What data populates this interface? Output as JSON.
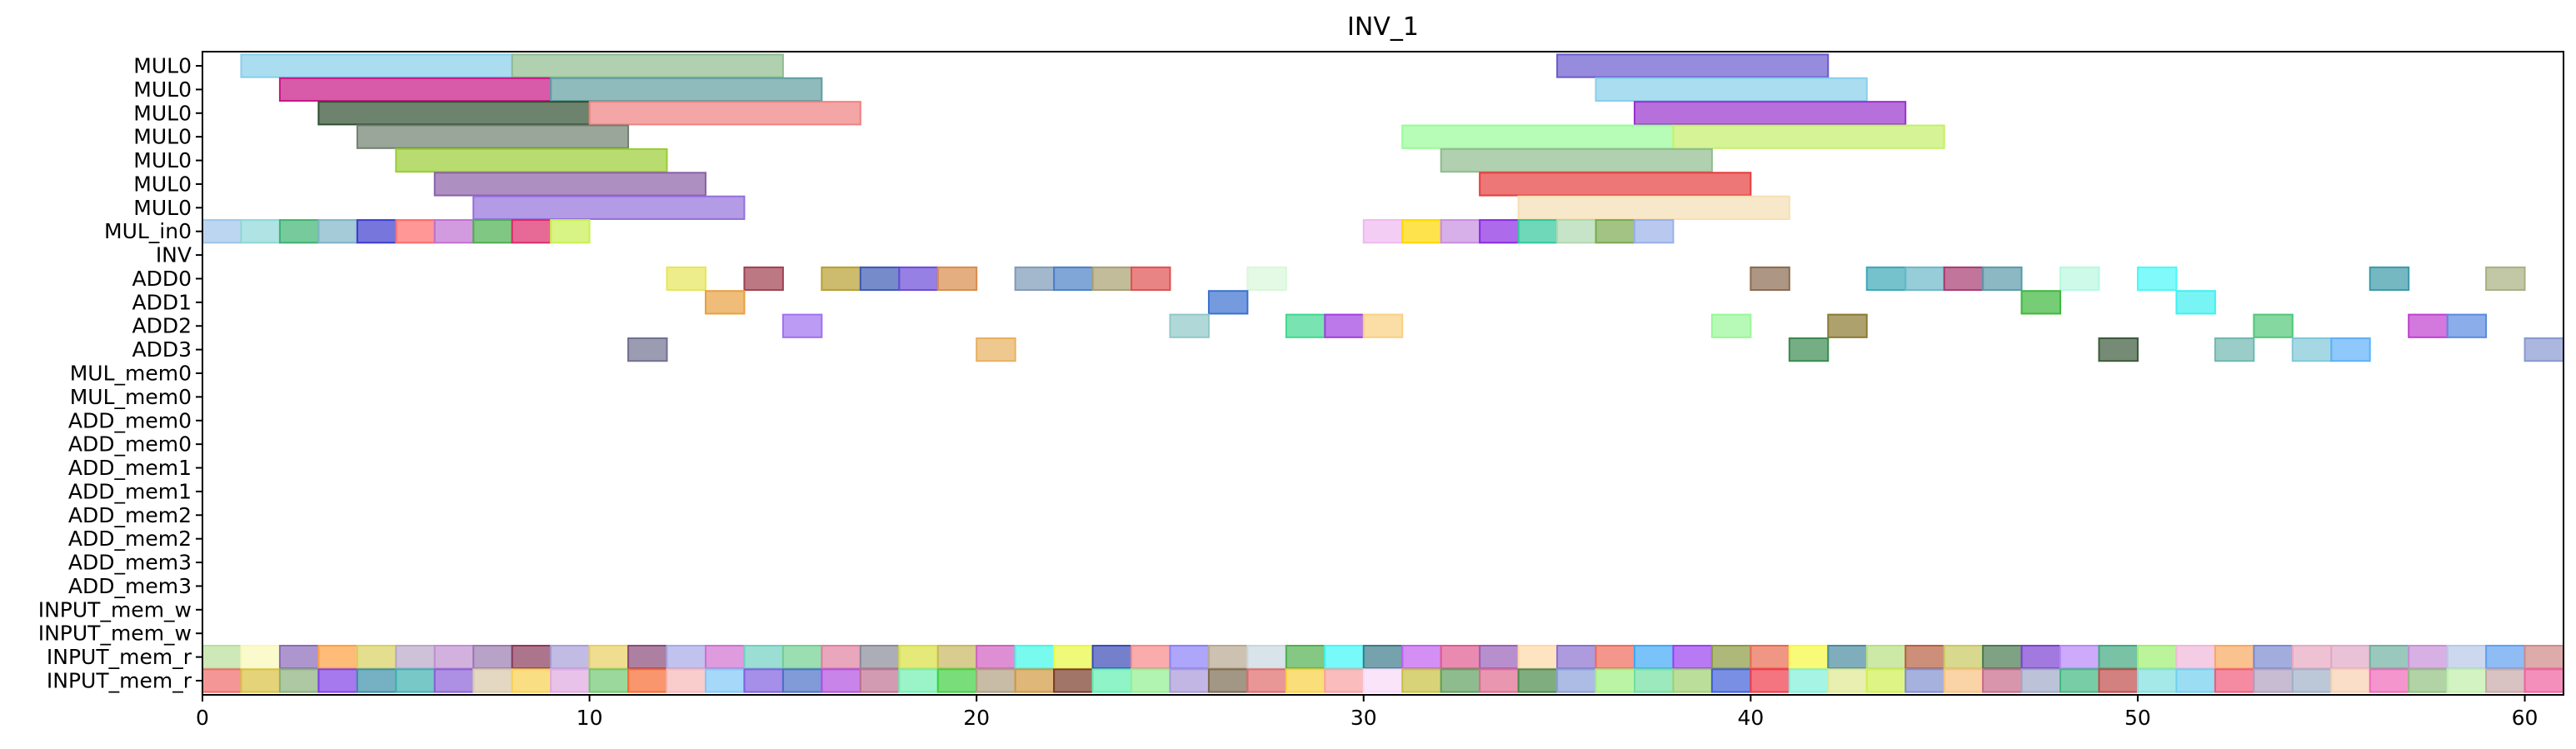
{
  "chart_data": {
    "type": "gantt",
    "title": "INV_1",
    "xlabel": "",
    "ylabel": "",
    "xlim": [
      0,
      61
    ],
    "xticks": [
      0,
      10,
      20,
      30,
      40,
      50,
      60
    ],
    "grid": false,
    "rows": [
      "MUL0",
      "MUL0",
      "MUL0",
      "MUL0",
      "MUL0",
      "MUL0",
      "MUL0",
      "MUL_in0",
      "INV",
      "ADD0",
      "ADD1",
      "ADD2",
      "ADD3",
      "MUL_mem0",
      "MUL_mem0",
      "ADD_mem0",
      "ADD_mem0",
      "ADD_mem1",
      "ADD_mem1",
      "ADD_mem2",
      "ADD_mem2",
      "ADD_mem3",
      "ADD_mem3",
      "INPUT_mem_w",
      "INPUT_mem_w",
      "INPUT_mem_r",
      "INPUT_mem_r"
    ],
    "tasks": [
      {
        "row": 0,
        "start": 1,
        "end": 8,
        "color": "#87ceeb"
      },
      {
        "row": 0,
        "start": 8,
        "end": 15,
        "color": "#8fbc8f"
      },
      {
        "row": 0,
        "start": 35,
        "end": 42,
        "color": "#6a5acd"
      },
      {
        "row": 1,
        "start": 2,
        "end": 9,
        "color": "#c71585"
      },
      {
        "row": 1,
        "start": 9,
        "end": 16,
        "color": "#5f9ea0"
      },
      {
        "row": 1,
        "start": 36,
        "end": 43,
        "color": "#87ceeb"
      },
      {
        "row": 2,
        "start": 3,
        "end": 10,
        "color": "#2f4f2f"
      },
      {
        "row": 2,
        "start": 10,
        "end": 17,
        "color": "#f08080"
      },
      {
        "row": 2,
        "start": 37,
        "end": 44,
        "color": "#9932cc"
      },
      {
        "row": 3,
        "start": 4,
        "end": 11,
        "color": "#708070"
      },
      {
        "row": 3,
        "start": 31,
        "end": 38,
        "color": "#98fb98"
      },
      {
        "row": 3,
        "start": 38,
        "end": 45,
        "color": "#c5f06a"
      },
      {
        "row": 4,
        "start": 5,
        "end": 12,
        "color": "#9acd32"
      },
      {
        "row": 4,
        "start": 32,
        "end": 39,
        "color": "#8fbc8f"
      },
      {
        "row": 5,
        "start": 6,
        "end": 13,
        "color": "#8b5fa8"
      },
      {
        "row": 5,
        "start": 33,
        "end": 40,
        "color": "#e63c3c"
      },
      {
        "row": 6,
        "start": 7,
        "end": 14,
        "color": "#9370db"
      },
      {
        "row": 6,
        "start": 34,
        "end": 41,
        "color": "#f5deb3"
      },
      {
        "row": 7,
        "start": 0,
        "end": 1,
        "color": "#9fc3ea"
      },
      {
        "row": 7,
        "start": 1,
        "end": 2,
        "color": "#8ed7d7"
      },
      {
        "row": 7,
        "start": 2,
        "end": 3,
        "color": "#3cb371"
      },
      {
        "row": 7,
        "start": 3,
        "end": 4,
        "color": "#7fb3c8"
      },
      {
        "row": 7,
        "start": 4,
        "end": 5,
        "color": "#3c3ccf"
      },
      {
        "row": 7,
        "start": 5,
        "end": 6,
        "color": "#ff6b6b"
      },
      {
        "row": 7,
        "start": 6,
        "end": 7,
        "color": "#c071d1"
      },
      {
        "row": 7,
        "start": 7,
        "end": 8,
        "color": "#4caf50"
      },
      {
        "row": 7,
        "start": 8,
        "end": 9,
        "color": "#dc2a6a"
      },
      {
        "row": 7,
        "start": 9,
        "end": 10,
        "color": "#c8f050"
      },
      {
        "row": 7,
        "start": 30,
        "end": 31,
        "color": "#f0b8f0"
      },
      {
        "row": 7,
        "start": 31,
        "end": 32,
        "color": "#ffd700"
      },
      {
        "row": 7,
        "start": 32,
        "end": 33,
        "color": "#c78ee0"
      },
      {
        "row": 7,
        "start": 33,
        "end": 34,
        "color": "#8a2be2"
      },
      {
        "row": 7,
        "start": 34,
        "end": 35,
        "color": "#30c89a"
      },
      {
        "row": 7,
        "start": 35,
        "end": 36,
        "color": "#b0d8b0"
      },
      {
        "row": 7,
        "start": 36,
        "end": 37,
        "color": "#7aaa50"
      },
      {
        "row": 7,
        "start": 37,
        "end": 38,
        "color": "#9ab0e8"
      },
      {
        "row": 9,
        "start": 12,
        "end": 13,
        "color": "#e6e65a"
      },
      {
        "row": 9,
        "start": 14,
        "end": 15,
        "color": "#a04050"
      },
      {
        "row": 9,
        "start": 16,
        "end": 17,
        "color": "#b8a030"
      },
      {
        "row": 9,
        "start": 17,
        "end": 18,
        "color": "#3c5ab4"
      },
      {
        "row": 9,
        "start": 18,
        "end": 19,
        "color": "#6a4ad8"
      },
      {
        "row": 9,
        "start": 19,
        "end": 20,
        "color": "#d98c4a"
      },
      {
        "row": 9,
        "start": 21,
        "end": 22,
        "color": "#7e9ab8"
      },
      {
        "row": 9,
        "start": 22,
        "end": 23,
        "color": "#4a80c8"
      },
      {
        "row": 9,
        "start": 23,
        "end": 24,
        "color": "#a8a070"
      },
      {
        "row": 9,
        "start": 24,
        "end": 25,
        "color": "#e05050"
      },
      {
        "row": 9,
        "start": 27,
        "end": 28,
        "color": "#d8f8d8"
      },
      {
        "row": 9,
        "start": 40,
        "end": 41,
        "color": "#8a6a50"
      },
      {
        "row": 9,
        "start": 43,
        "end": 44,
        "color": "#3aa8b8"
      },
      {
        "row": 9,
        "start": 44,
        "end": 45,
        "color": "#6ab8c8"
      },
      {
        "row": 9,
        "start": 45,
        "end": 46,
        "color": "#a83a70"
      },
      {
        "row": 9,
        "start": 46,
        "end": 47,
        "color": "#5a9aa8"
      },
      {
        "row": 9,
        "start": 48,
        "end": 49,
        "color": "#b8f8e0"
      },
      {
        "row": 9,
        "start": 50,
        "end": 51,
        "color": "#4af8f8"
      },
      {
        "row": 9,
        "start": 56,
        "end": 57,
        "color": "#3a9aa8"
      },
      {
        "row": 9,
        "start": 59,
        "end": 60,
        "color": "#a8b080"
      },
      {
        "row": 10,
        "start": 13,
        "end": 14,
        "color": "#e8a040"
      },
      {
        "row": 10,
        "start": 26,
        "end": 27,
        "color": "#3a70d0"
      },
      {
        "row": 10,
        "start": 47,
        "end": 48,
        "color": "#3cb83c"
      },
      {
        "row": 10,
        "start": 51,
        "end": 52,
        "color": "#40f0f0"
      },
      {
        "row": 11,
        "start": 15,
        "end": 16,
        "color": "#a070f0"
      },
      {
        "row": 11,
        "start": 25,
        "end": 26,
        "color": "#90c8c8"
      },
      {
        "row": 11,
        "start": 28,
        "end": 29,
        "color": "#40d890"
      },
      {
        "row": 11,
        "start": 29,
        "end": 30,
        "color": "#a040e0"
      },
      {
        "row": 11,
        "start": 30,
        "end": 31,
        "color": "#f8d080"
      },
      {
        "row": 11,
        "start": 39,
        "end": 40,
        "color": "#98f898"
      },
      {
        "row": 11,
        "start": 42,
        "end": 43,
        "color": "#8a7a30"
      },
      {
        "row": 11,
        "start": 53,
        "end": 54,
        "color": "#50c878"
      },
      {
        "row": 11,
        "start": 57,
        "end": 58,
        "color": "#c040d0"
      },
      {
        "row": 11,
        "start": 58,
        "end": 59,
        "color": "#5a8ae0"
      },
      {
        "row": 12,
        "start": 11,
        "end": 12,
        "color": "#707090"
      },
      {
        "row": 12,
        "start": 20,
        "end": 21,
        "color": "#e8b060"
      },
      {
        "row": 12,
        "start": 41,
        "end": 42,
        "color": "#3a8a50"
      },
      {
        "row": 12,
        "start": 49,
        "end": 50,
        "color": "#3a5a3a"
      },
      {
        "row": 12,
        "start": 52,
        "end": 53,
        "color": "#70b8b0"
      },
      {
        "row": 12,
        "start": 54,
        "end": 55,
        "color": "#80c8d8"
      },
      {
        "row": 12,
        "start": 55,
        "end": 56,
        "color": "#60b0f8"
      },
      {
        "row": 12,
        "start": 60,
        "end": 61,
        "color": "#8898d0"
      }
    ],
    "mem_row_a": {
      "row": 25,
      "colors": [
        "#b8e098",
        "#f8f8b8",
        "#8a6ab8",
        "#ffa040",
        "#d8d060",
        "#b8a8c8",
        "#c090d0",
        "#9a7ab0",
        "#8a3a5a",
        "#a8a0d8",
        "#e8d060",
        "#8a4a7a",
        "#a8a8e8",
        "#d070d0",
        "#70d0c0",
        "#70d090",
        "#e080a0",
        "#8a8a9a",
        "#d8e040",
        "#c8b860",
        "#d060c0",
        "#40f8e8",
        "#e8f840",
        "#3a4ab8",
        "#f88888",
        "#8a80f8",
        "#b8a890",
        "#c8d8e0",
        "#50b050",
        "#40f8f8",
        "#3a7a8a",
        "#c060f0",
        "#e05a90",
        "#9a60b8",
        "#ffd8a8",
        "#8a70d0",
        "#f06a5a",
        "#40a8f8",
        "#9a40f0",
        "#8a9a40",
        "#e86a50",
        "#f8f840",
        "#4a8aa0",
        "#b8e080",
        "#b86040",
        "#c8c860",
        "#4a7a50",
        "#7a40d0",
        "#b888f8",
        "#40a880",
        "#a0f070",
        "#f0b8d8",
        "#f8a860",
        "#7a8ad0",
        "#e8a8c0",
        "#e0a8c8",
        "#70b0a0",
        "#c890d8",
        "#b8c8e8",
        "#60a0f0",
        "#d08888"
      ]
    },
    "mem_row_b": {
      "row": 26,
      "colors": [
        "#f06a6a",
        "#d8c040",
        "#8ab07a",
        "#8040e8",
        "#3a90a8",
        "#40b0b0",
        "#8a60d8",
        "#d8c8a8",
        "#f8d050",
        "#e0a8e0",
        "#70c870",
        "#f86a30",
        "#f8b8b8",
        "#80c8f8",
        "#8060e0",
        "#4a70c8",
        "#b050e0",
        "#c07090",
        "#70f0b0",
        "#40d040",
        "#b0a080",
        "#d09840",
        "#7a3a2a",
        "#60f0b0",
        "#90f090",
        "#a898d8",
        "#7a6a50",
        "#e06a6a",
        "#f8d040",
        "#f8a0a0",
        "#f8d8f8",
        "#c8c040",
        "#60a060",
        "#e06a90",
        "#4a8a4a",
        "#8aa0d8",
        "#a0f080",
        "#70e0a0",
        "#a0d070",
        "#4060d8",
        "#f03a4a",
        "#80f0d8",
        "#e0e890",
        "#d0f050",
        "#8090d0",
        "#f8c080",
        "#c86a8a",
        "#a0a8c8",
        "#40b880",
        "#c04a4a",
        "#80e0e0",
        "#70d0f0",
        "#f05a7a",
        "#b0a0c0",
        "#a0b0c8",
        "#f8d0b0",
        "#f06ab8",
        "#90c080",
        "#c0f0a8",
        "#c8a8a8",
        "#f060a0"
      ]
    }
  }
}
